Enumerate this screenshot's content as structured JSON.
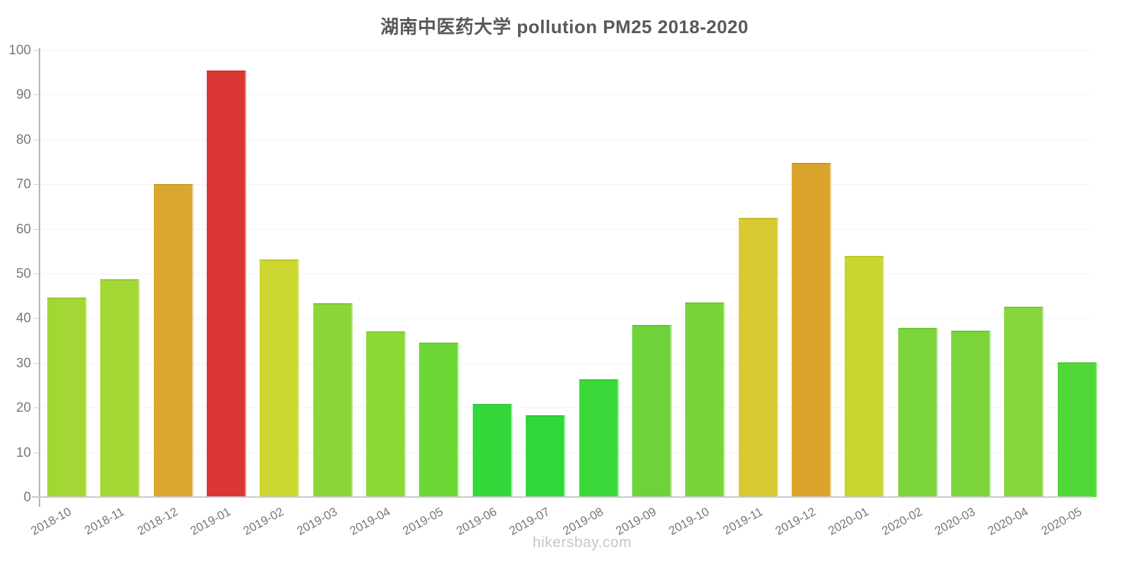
{
  "page": {
    "title": "湖南中医药大学 pollution PM25 2018-2020",
    "footer": "hikersbay.com"
  },
  "chart_data": {
    "type": "bar",
    "title": "湖南中医药大学 pollution PM25 2018-2020",
    "categories": [
      "2018-10",
      "2018-11",
      "2018-12",
      "2019-01",
      "2019-02",
      "2019-03",
      "2019-04",
      "2019-05",
      "2019-06",
      "2019-07",
      "2019-08",
      "2019-09",
      "2019-10",
      "2019-11",
      "2019-12",
      "2020-01",
      "2020-02",
      "2020-03",
      "2020-04",
      "2020-05"
    ],
    "values": [
      44.7,
      48.8,
      70.0,
      95.5,
      53.2,
      43.3,
      37.1,
      34.5,
      20.8,
      18.3,
      26.4,
      38.5,
      43.6,
      62.5,
      74.7,
      53.9,
      37.9,
      37.3,
      42.6,
      30.1
    ],
    "bar_colors": [
      "#A2D735",
      "#A4D834",
      "#DBA72E",
      "#DA3735",
      "#CCD731",
      "#8DD637",
      "#8CD835",
      "#6CD837",
      "#35D83A",
      "#2FD93B",
      "#38D839",
      "#6ED23A",
      "#79D43A",
      "#D7C92F",
      "#DBA42C",
      "#C9D630",
      "#7CD53B",
      "#7AD43A",
      "#85D73B",
      "#50D838"
    ],
    "xlabel": "",
    "ylabel": "",
    "ylim": [
      0,
      100
    ],
    "yticks": [
      0,
      10,
      20,
      30,
      40,
      50,
      60,
      70,
      80,
      90,
      100
    ],
    "grid": true,
    "legend": "none"
  },
  "colors": {
    "title_text": "#59595c",
    "axis_label_text": "#77787b",
    "y_axis_line": "#b4b4b9",
    "x_axis_line": "#c9c9ce",
    "gridline": "#f3f3f7",
    "watermark_text": "#c7c7c7",
    "background": "#ffffff"
  }
}
